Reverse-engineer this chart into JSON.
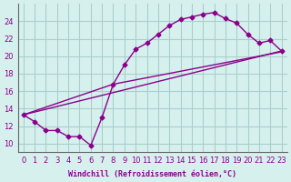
{
  "bg_color": "#d6f0ee",
  "grid_color": "#aacfcb",
  "line_color": "#8b008b",
  "marker_color": "#8b008b",
  "xlabel": "Windchill (Refroidissement éolien,°C)",
  "xlim": [
    -0.5,
    23.5
  ],
  "ylim": [
    9,
    26
  ],
  "yticks": [
    10,
    12,
    14,
    16,
    18,
    20,
    22,
    24
  ],
  "xticks": [
    0,
    1,
    2,
    3,
    4,
    5,
    6,
    7,
    8,
    9,
    10,
    11,
    12,
    13,
    14,
    15,
    16,
    17,
    18,
    19,
    20,
    21,
    22,
    23
  ],
  "line1_x": [
    0,
    1,
    2,
    3,
    4,
    5,
    6,
    7,
    8,
    9,
    10,
    11,
    12,
    13,
    14,
    15,
    16,
    17,
    18,
    19,
    20,
    21,
    22,
    23
  ],
  "line1_y": [
    13.3,
    12.5,
    11.5,
    11.5,
    10.8,
    10.8,
    9.8,
    13.0,
    16.8,
    19.0,
    20.8,
    21.5,
    22.5,
    23.5,
    24.2,
    24.5,
    24.8,
    25.0,
    24.3,
    23.8,
    22.5,
    21.5,
    21.8,
    20.6
  ],
  "line2_x": [
    0,
    8,
    23
  ],
  "line2_y": [
    13.3,
    16.8,
    20.5
  ],
  "line3_x": [
    0,
    23
  ],
  "line3_y": [
    13.3,
    20.6
  ]
}
